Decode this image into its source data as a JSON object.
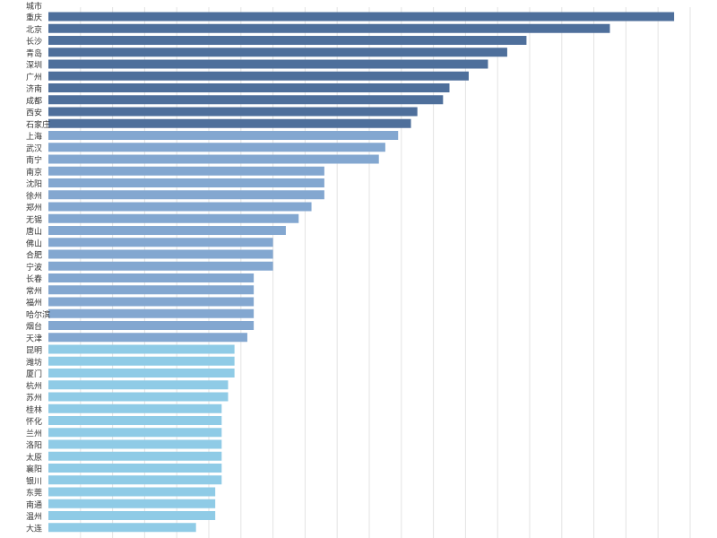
{
  "header": {
    "category_column_label": "城市"
  },
  "chart_data": {
    "type": "bar",
    "orientation": "horizontal",
    "xlim": [
      0,
      20
    ],
    "grid": "vertical",
    "categories": [
      "重庆",
      "北京",
      "长沙",
      "青岛",
      "深圳",
      "广州",
      "济南",
      "成都",
      "西安",
      "石家庄",
      "上海",
      "武汉",
      "南宁",
      "南京",
      "沈阳",
      "徐州",
      "郑州",
      "无锡",
      "唐山",
      "佛山",
      "合肥",
      "宁波",
      "长春",
      "常州",
      "福州",
      "哈尔滨",
      "烟台",
      "天津",
      "昆明",
      "潍坊",
      "厦门",
      "杭州",
      "苏州",
      "桂林",
      "怀化",
      "兰州",
      "洛阳",
      "太原",
      "襄阳",
      "银川",
      "东莞",
      "南通",
      "温州",
      "大连"
    ],
    "values": [
      19.5,
      17.5,
      14.9,
      14.3,
      13.7,
      13.1,
      12.5,
      12.3,
      11.5,
      11.3,
      10.9,
      10.5,
      10.3,
      8.6,
      8.6,
      8.6,
      8.2,
      7.8,
      7.4,
      7.0,
      7.0,
      7.0,
      6.4,
      6.4,
      6.4,
      6.4,
      6.4,
      6.2,
      5.8,
      5.8,
      5.8,
      5.6,
      5.6,
      5.4,
      5.4,
      5.4,
      5.4,
      5.4,
      5.4,
      5.4,
      5.2,
      5.2,
      5.2,
      4.6
    ],
    "colors": [
      "#4e6f9b",
      "#4e6f9b",
      "#4e6f9b",
      "#4e6f9b",
      "#4e6f9b",
      "#4e6f9b",
      "#4e6f9b",
      "#4e6f9b",
      "#4e6f9b",
      "#4e6f9b",
      "#83a7d0",
      "#83a7d0",
      "#83a7d0",
      "#83a7d0",
      "#83a7d0",
      "#83a7d0",
      "#83a7d0",
      "#83a7d0",
      "#83a7d0",
      "#83a7d0",
      "#83a7d0",
      "#83a7d0",
      "#83a7d0",
      "#83a7d0",
      "#83a7d0",
      "#83a7d0",
      "#83a7d0",
      "#83a7d0",
      "#8fcbe6",
      "#8fcbe6",
      "#8fcbe6",
      "#8fcbe6",
      "#8fcbe6",
      "#8fcbe6",
      "#8fcbe6",
      "#8fcbe6",
      "#8fcbe6",
      "#8fcbe6",
      "#8fcbe6",
      "#8fcbe6",
      "#8fcbe6",
      "#8fcbe6",
      "#8fcbe6",
      "#8fcbe6"
    ]
  }
}
